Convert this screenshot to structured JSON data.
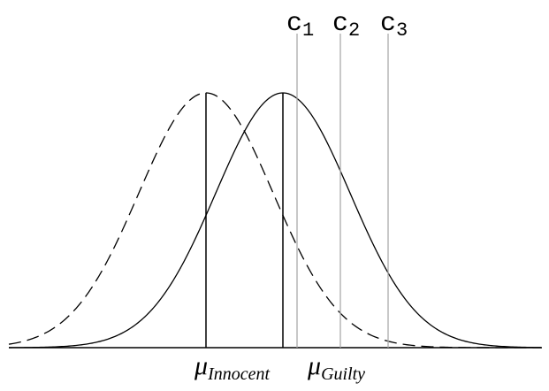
{
  "criteria": [
    {
      "base": "c",
      "sub": "1"
    },
    {
      "base": "c",
      "sub": "2"
    },
    {
      "base": "c",
      "sub": "3"
    }
  ],
  "means": [
    {
      "base": "μ",
      "sub": "Innocent"
    },
    {
      "base": "μ",
      "sub": "Guilty"
    }
  ]
}
